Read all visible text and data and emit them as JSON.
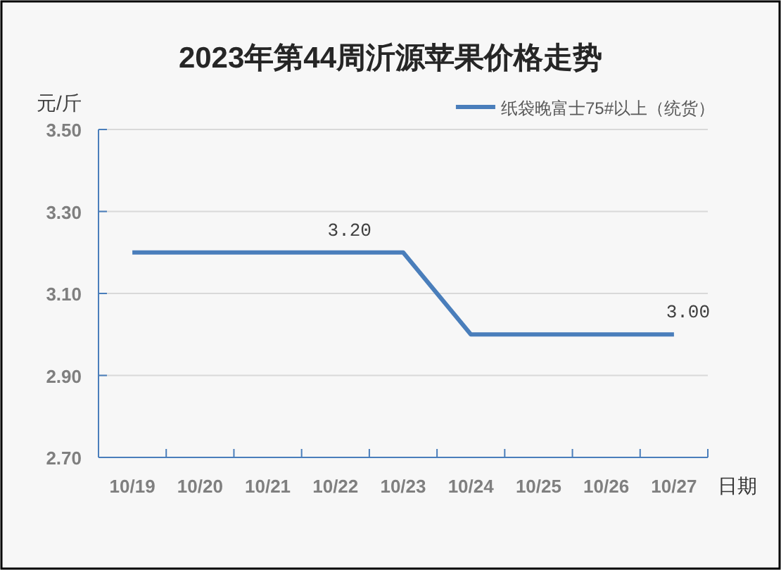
{
  "chart_data": {
    "type": "line",
    "title": "2023年第44周沂源苹果价格走势",
    "xlabel": "日期",
    "ylabel": "元/斤",
    "categories": [
      "10/19",
      "10/20",
      "10/21",
      "10/22",
      "10/23",
      "10/24",
      "10/25",
      "10/26",
      "10/27"
    ],
    "series": [
      {
        "name": "纸袋晚富士75#以上（统货）",
        "color": "#4a7ebb",
        "values": [
          3.2,
          3.2,
          3.2,
          3.2,
          3.2,
          3.0,
          3.0,
          3.0,
          3.0
        ],
        "value_labels": [
          null,
          null,
          null,
          "3.20",
          null,
          null,
          null,
          null,
          "3.00"
        ]
      }
    ],
    "ylim": [
      2.7,
      3.5
    ],
    "yticks": [
      {
        "value": 2.7,
        "label": "2.70"
      },
      {
        "value": 2.9,
        "label": "2.90"
      },
      {
        "value": 3.1,
        "label": "3.10"
      },
      {
        "value": 3.3,
        "label": "3.30"
      },
      {
        "value": 3.5,
        "label": "3.50"
      }
    ],
    "grid": "y",
    "legend": "top right",
    "line_style": "solid"
  }
}
